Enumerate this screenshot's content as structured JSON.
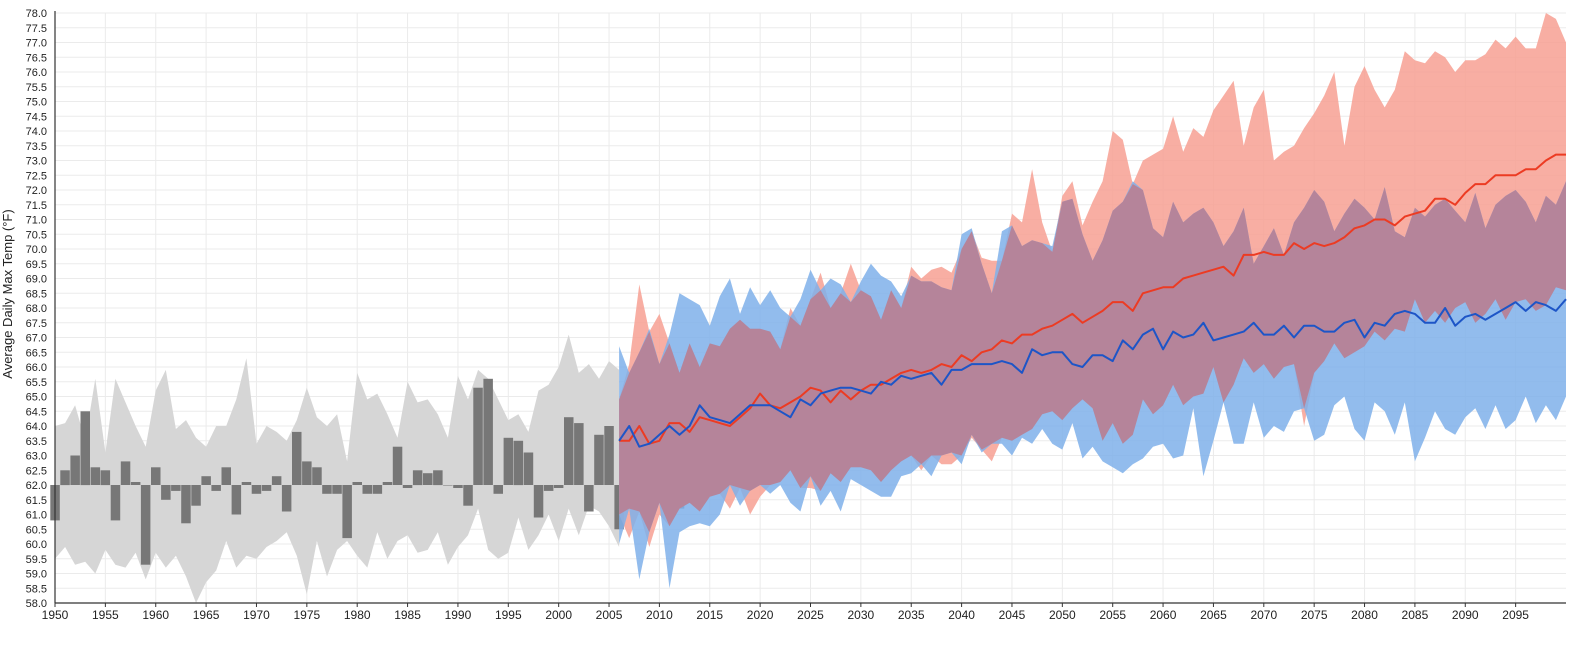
{
  "chart_data": {
    "type": "area",
    "ylabel": "Average Daily Max Temp (°F)",
    "xlabel": "",
    "title": "",
    "xlim": [
      1950,
      2100
    ],
    "ylim": [
      58.0,
      78.0
    ],
    "baseline": 62.0,
    "grid": true,
    "x_ticks": [
      1950,
      1955,
      1960,
      1965,
      1970,
      1975,
      1980,
      1985,
      1990,
      1995,
      2000,
      2005,
      2010,
      2015,
      2020,
      2025,
      2030,
      2035,
      2040,
      2045,
      2050,
      2055,
      2060,
      2065,
      2070,
      2075,
      2080,
      2085,
      2090,
      2095
    ],
    "y_ticks": [
      "58.0",
      "58.5",
      "59.0",
      "59.5",
      "60.0",
      "60.5",
      "61.0",
      "61.5",
      "62.0",
      "62.5",
      "63.0",
      "63.5",
      "64.0",
      "64.5",
      "65.0",
      "65.5",
      "66.0",
      "66.5",
      "67.0",
      "67.5",
      "68.0",
      "68.5",
      "69.0",
      "69.5",
      "70.0",
      "70.5",
      "71.0",
      "71.5",
      "72.0",
      "72.5",
      "73.0",
      "73.5",
      "74.0",
      "74.5",
      "75.0",
      "75.5",
      "76.0",
      "76.5",
      "77.0",
      "77.5",
      "78.0"
    ],
    "colors": {
      "observed_bar": "#777777",
      "observed_range": "#d6d6d6",
      "high_range": "#f7a093",
      "low_range": "#7fb0ea",
      "high_line": "#ec3b23",
      "low_line": "#1d55c7"
    },
    "observed": {
      "years": [
        1950,
        1951,
        1952,
        1953,
        1954,
        1955,
        1956,
        1957,
        1958,
        1959,
        1960,
        1961,
        1962,
        1963,
        1964,
        1965,
        1966,
        1967,
        1968,
        1969,
        1970,
        1971,
        1972,
        1973,
        1974,
        1975,
        1976,
        1977,
        1978,
        1979,
        1980,
        1981,
        1982,
        1983,
        1984,
        1985,
        1986,
        1987,
        1988,
        1989,
        1990,
        1991,
        1992,
        1993,
        1994,
        1995,
        1996,
        1997,
        1998,
        1999,
        2000,
        2001,
        2002,
        2003,
        2004,
        2005,
        2006,
        2007,
        2008,
        2009,
        2010,
        2011,
        2012,
        2013
      ],
      "values": [
        60.8,
        62.5,
        63.0,
        64.5,
        62.6,
        62.5,
        60.8,
        62.8,
        62.1,
        59.3,
        62.6,
        61.5,
        61.8,
        60.7,
        61.3,
        62.3,
        61.8,
        62.6,
        61.0,
        62.1,
        61.7,
        61.8,
        62.3,
        61.1,
        63.8,
        62.8,
        62.6,
        61.7,
        61.7,
        60.2,
        62.1,
        61.7,
        61.7,
        62.1,
        63.3,
        61.9,
        62.5,
        62.4,
        62.5,
        62.0,
        61.9,
        61.3,
        65.3,
        65.6,
        61.7,
        63.6,
        63.5,
        63.1,
        60.9,
        61.8,
        61.9,
        64.3,
        64.1,
        61.1,
        63.7,
        64.0,
        60.5,
        61.7,
        63.1,
        64.4,
        62.9,
        63.1,
        61.2,
        64.1
      ],
      "range_high": [
        64.0,
        64.1,
        64.7,
        63.5,
        65.6,
        63.1,
        65.6,
        64.8,
        64.0,
        63.3,
        65.2,
        65.9,
        63.9,
        64.2,
        63.6,
        63.3,
        64.0,
        64.0,
        64.9,
        66.3,
        63.4,
        64.0,
        63.8,
        63.5,
        64.2,
        65.3,
        64.3,
        64.0,
        64.4,
        62.8,
        65.8,
        64.9,
        65.1,
        64.4,
        63.6,
        65.5,
        64.8,
        64.9,
        64.4,
        63.6,
        65.7,
        64.9,
        65.9,
        65.6,
        64.9,
        64.2,
        64.4,
        63.8,
        65.2,
        65.4,
        66.0,
        67.1,
        65.8,
        66.1,
        65.6,
        66.2,
        65.9
      ],
      "range_low": [
        59.5,
        59.9,
        59.3,
        59.4,
        59.0,
        59.8,
        59.3,
        59.2,
        59.7,
        58.8,
        59.7,
        59.2,
        59.6,
        58.9,
        58.0,
        58.7,
        59.1,
        60.1,
        59.2,
        59.6,
        59.5,
        59.9,
        60.1,
        60.4,
        59.6,
        58.3,
        60.1,
        58.9,
        59.8,
        60.1,
        59.6,
        59.2,
        60.4,
        59.5,
        60.1,
        60.3,
        59.7,
        59.8,
        60.4,
        59.3,
        59.9,
        60.3,
        61.2,
        59.8,
        59.5,
        59.7,
        60.9,
        59.8,
        60.3,
        61.0,
        60.1,
        61.2,
        60.3,
        61.3,
        61.1,
        60.6,
        59.9
      ]
    },
    "projected": {
      "years": [
        2006,
        2007,
        2008,
        2009,
        2010,
        2011,
        2012,
        2013,
        2014,
        2015,
        2016,
        2017,
        2018,
        2019,
        2020,
        2021,
        2022,
        2023,
        2024,
        2025,
        2026,
        2027,
        2028,
        2029,
        2030,
        2031,
        2032,
        2033,
        2034,
        2035,
        2036,
        2037,
        2038,
        2039,
        2040,
        2041,
        2042,
        2043,
        2044,
        2045,
        2046,
        2047,
        2048,
        2049,
        2050,
        2051,
        2052,
        2053,
        2054,
        2055,
        2056,
        2057,
        2058,
        2059,
        2060,
        2061,
        2062,
        2063,
        2064,
        2065,
        2066,
        2067,
        2068,
        2069,
        2070,
        2071,
        2072,
        2073,
        2074,
        2075,
        2076,
        2077,
        2078,
        2079,
        2080,
        2081,
        2082,
        2083,
        2084,
        2085,
        2086,
        2087,
        2088,
        2089,
        2090,
        2091,
        2092,
        2093,
        2094,
        2095,
        2096,
        2097,
        2098,
        2099,
        2100
      ],
      "series": [
        {
          "name": "Higher Emissions",
          "median": [
            63.5,
            63.5,
            64.0,
            63.4,
            63.5,
            64.1,
            64.1,
            63.8,
            64.3,
            64.2,
            64.1,
            64.0,
            64.3,
            64.6,
            65.1,
            64.7,
            64.6,
            64.8,
            65.0,
            65.3,
            65.2,
            64.8,
            65.2,
            64.9,
            65.2,
            65.4,
            65.4,
            65.6,
            65.8,
            65.9,
            65.8,
            65.9,
            66.1,
            66.0,
            66.4,
            66.2,
            66.5,
            66.6,
            66.9,
            66.8,
            67.1,
            67.1,
            67.3,
            67.4,
            67.6,
            67.8,
            67.5,
            67.7,
            67.9,
            68.2,
            68.2,
            67.9,
            68.5,
            68.6,
            68.7,
            68.7,
            69.0,
            69.1,
            69.2,
            69.3,
            69.4,
            69.1,
            69.8,
            69.8,
            69.9,
            69.8,
            69.8,
            70.2,
            70.0,
            70.2,
            70.1,
            70.2,
            70.4,
            70.7,
            70.8,
            71.0,
            71.0,
            70.8,
            71.1,
            71.2,
            71.3,
            71.7,
            71.7,
            71.5,
            71.9,
            72.2,
            72.2,
            72.5,
            72.5,
            72.5,
            72.7,
            72.7,
            73.0,
            73.2,
            73.2
          ],
          "range_high": [
            64.9,
            66.1,
            68.8,
            67.2,
            67.8,
            66.8,
            65.8,
            66.8,
            66.0,
            66.8,
            66.7,
            67.3,
            67.6,
            67.3,
            67.3,
            67.2,
            66.6,
            68.0,
            67.4,
            68.3,
            69.2,
            68.0,
            68.5,
            69.5,
            68.6,
            68.4,
            67.6,
            68.6,
            68.0,
            69.4,
            69.0,
            69.3,
            69.4,
            69.2,
            70.0,
            70.6,
            69.7,
            69.6,
            69.6,
            71.2,
            70.9,
            72.7,
            70.9,
            69.9,
            71.8,
            72.3,
            70.8,
            71.6,
            72.3,
            74.0,
            73.7,
            72.2,
            73.0,
            73.2,
            73.4,
            74.5,
            73.3,
            74.1,
            73.8,
            74.7,
            75.2,
            75.7,
            73.5,
            74.8,
            75.4,
            73.0,
            73.3,
            73.5,
            74.1,
            74.6,
            75.2,
            76.0,
            73.5,
            75.5,
            76.2,
            75.4,
            74.8,
            75.4,
            76.7,
            76.4,
            76.3,
            76.7,
            76.5,
            76.0,
            76.4,
            76.4,
            76.6,
            77.1,
            76.8,
            77.2,
            76.8,
            76.8,
            78.0,
            77.8,
            77.0
          ],
          "range_low": [
            61.0,
            60.2,
            61.1,
            59.9,
            61.0,
            60.6,
            61.2,
            61.4,
            61.1,
            61.6,
            61.7,
            61.2,
            61.9,
            61.0,
            61.6,
            62.0,
            62.1,
            62.5,
            61.9,
            61.9,
            61.8,
            62.4,
            62.1,
            62.6,
            62.6,
            62.5,
            62.1,
            62.5,
            62.8,
            63.0,
            62.5,
            63.0,
            62.7,
            62.7,
            63.0,
            63.6,
            63.2,
            62.8,
            63.6,
            63.5,
            63.7,
            63.9,
            64.4,
            64.5,
            64.2,
            64.6,
            64.9,
            64.6,
            63.5,
            64.1,
            63.4,
            63.7,
            64.9,
            64.4,
            64.7,
            65.4,
            64.7,
            65.0,
            65.1,
            66.0,
            64.8,
            65.4,
            66.3,
            65.8,
            66.1,
            65.6,
            66.0,
            66.1,
            64.0,
            65.8,
            66.2,
            66.8,
            66.3,
            66.5,
            66.7,
            67.2,
            66.9,
            67.3,
            67.2,
            68.3,
            67.5,
            67.9,
            67.5,
            68.0,
            68.2,
            67.5,
            67.8,
            68.3,
            67.6,
            68.2,
            68.3,
            67.9,
            68.1,
            68.7,
            68.6
          ],
          "upper_low_range": [
            63.3,
            64.7,
            65.8,
            65.5,
            65.6,
            66.6,
            67.3,
            67.4,
            67.3,
            67.7,
            67.8,
            67.7,
            67.6,
            67.2,
            67.0,
            67.8,
            67.1,
            67.6,
            68.5,
            68.1,
            68.4,
            68.3,
            68.6,
            67.6,
            68.7,
            68.1,
            67.9,
            68.0,
            68.3,
            68.9,
            68.1,
            68.6,
            69.3,
            69.6,
            69.5,
            69.9,
            70.1,
            69.6,
            69.4,
            70.4,
            70.1,
            71.0,
            70.9,
            69.9,
            70.3,
            70.7,
            70.0,
            70.4,
            71.2,
            71.4,
            71.4,
            70.9,
            70.8,
            71.0,
            71.3,
            71.4,
            70.9,
            71.9,
            71.3,
            71.7,
            71.8,
            71.0,
            72.2,
            72.0,
            72.3,
            72.5,
            71.2,
            71.4,
            71.5,
            71.1,
            70.6,
            71.5,
            72.1,
            71.0,
            71.2,
            71.6,
            71.1,
            72.0,
            71.3,
            71.0,
            71.3,
            71.8,
            72.1,
            71.6,
            71.7,
            71.5,
            71.8,
            70.9,
            71.7,
            71.1,
            70.9,
            71.5,
            69.8,
            71.8,
            72.4
          ],
          "color": "#f7a093"
        },
        {
          "name": "Lower Emissions",
          "median": [
            63.5,
            64.0,
            63.3,
            63.4,
            63.7,
            64.0,
            63.7,
            64.0,
            64.7,
            64.3,
            64.2,
            64.1,
            64.4,
            64.7,
            64.7,
            64.7,
            64.5,
            64.3,
            64.9,
            64.7,
            65.1,
            65.2,
            65.3,
            65.3,
            65.2,
            65.1,
            65.5,
            65.4,
            65.7,
            65.6,
            65.7,
            65.8,
            65.4,
            65.9,
            65.9,
            66.1,
            66.1,
            66.1,
            66.2,
            66.1,
            65.8,
            66.6,
            66.4,
            66.5,
            66.5,
            66.1,
            66.0,
            66.4,
            66.4,
            66.2,
            66.9,
            66.6,
            67.1,
            67.3,
            66.6,
            67.2,
            67.0,
            67.1,
            67.5,
            66.9,
            67.0,
            67.1,
            67.2,
            67.5,
            67.1,
            67.1,
            67.4,
            67.0,
            67.4,
            67.4,
            67.2,
            67.2,
            67.5,
            67.6,
            67.0,
            67.5,
            67.4,
            67.8,
            67.9,
            67.8,
            67.5,
            67.5,
            68.0,
            67.4,
            67.7,
            67.8,
            67.6,
            67.8,
            68.0,
            68.2,
            67.9,
            68.2,
            68.1,
            67.9,
            68.3
          ],
          "range_high": [
            66.7,
            65.8,
            66.5,
            67.3,
            66.1,
            67.1,
            68.5,
            68.3,
            68.1,
            67.4,
            68.4,
            69.0,
            67.8,
            68.7,
            68.1,
            68.6,
            68.0,
            67.7,
            68.3,
            69.3,
            68.6,
            69.0,
            68.8,
            68.2,
            68.9,
            69.5,
            69.1,
            68.9,
            68.4,
            69.1,
            68.9,
            68.9,
            68.7,
            68.6,
            70.5,
            70.7,
            69.5,
            68.5,
            70.6,
            70.8,
            70.1,
            70.3,
            70.2,
            70.1,
            71.6,
            71.7,
            70.5,
            69.6,
            70.3,
            71.3,
            71.6,
            72.3,
            72.0,
            70.7,
            70.4,
            71.6,
            70.9,
            71.2,
            71.4,
            70.9,
            70.1,
            70.6,
            71.4,
            69.5,
            70.1,
            70.7,
            69.8,
            70.9,
            71.4,
            72.0,
            71.6,
            70.6,
            71.2,
            71.7,
            71.4,
            71.0,
            72.1,
            70.6,
            70.4,
            71.4,
            71.1,
            71.5,
            71.7,
            71.3,
            70.9,
            71.9,
            70.7,
            71.5,
            71.8,
            72.0,
            71.6,
            70.9,
            71.8,
            71.5,
            72.3
          ],
          "range_low": [
            60.0,
            61.2,
            58.8,
            60.4,
            61.4,
            58.5,
            60.4,
            60.6,
            60.7,
            60.6,
            61.0,
            62.0,
            61.3,
            61.8,
            62.0,
            61.7,
            62.0,
            61.4,
            61.1,
            62.3,
            61.3,
            61.8,
            61.1,
            62.2,
            62.0,
            61.8,
            61.6,
            61.6,
            62.3,
            62.4,
            62.7,
            62.3,
            63.0,
            63.1,
            62.7,
            63.7,
            63.1,
            63.4,
            63.4,
            63.0,
            63.6,
            63.4,
            63.9,
            63.4,
            63.2,
            64.1,
            62.9,
            63.3,
            62.8,
            62.6,
            62.4,
            62.7,
            62.9,
            63.3,
            63.4,
            62.9,
            63.0,
            64.6,
            62.3,
            63.5,
            64.8,
            63.4,
            63.4,
            64.8,
            63.6,
            64.0,
            63.8,
            64.5,
            64.6,
            63.5,
            63.7,
            64.7,
            65.0,
            63.9,
            63.5,
            64.8,
            64.5,
            63.7,
            64.8,
            62.8,
            63.6,
            64.5,
            63.9,
            63.7,
            64.3,
            64.6,
            63.9,
            64.7,
            63.9,
            64.2,
            65.0,
            64.1,
            64.7,
            64.2,
            65.0
          ],
          "color": "#7fb0ea"
        }
      ]
    }
  }
}
